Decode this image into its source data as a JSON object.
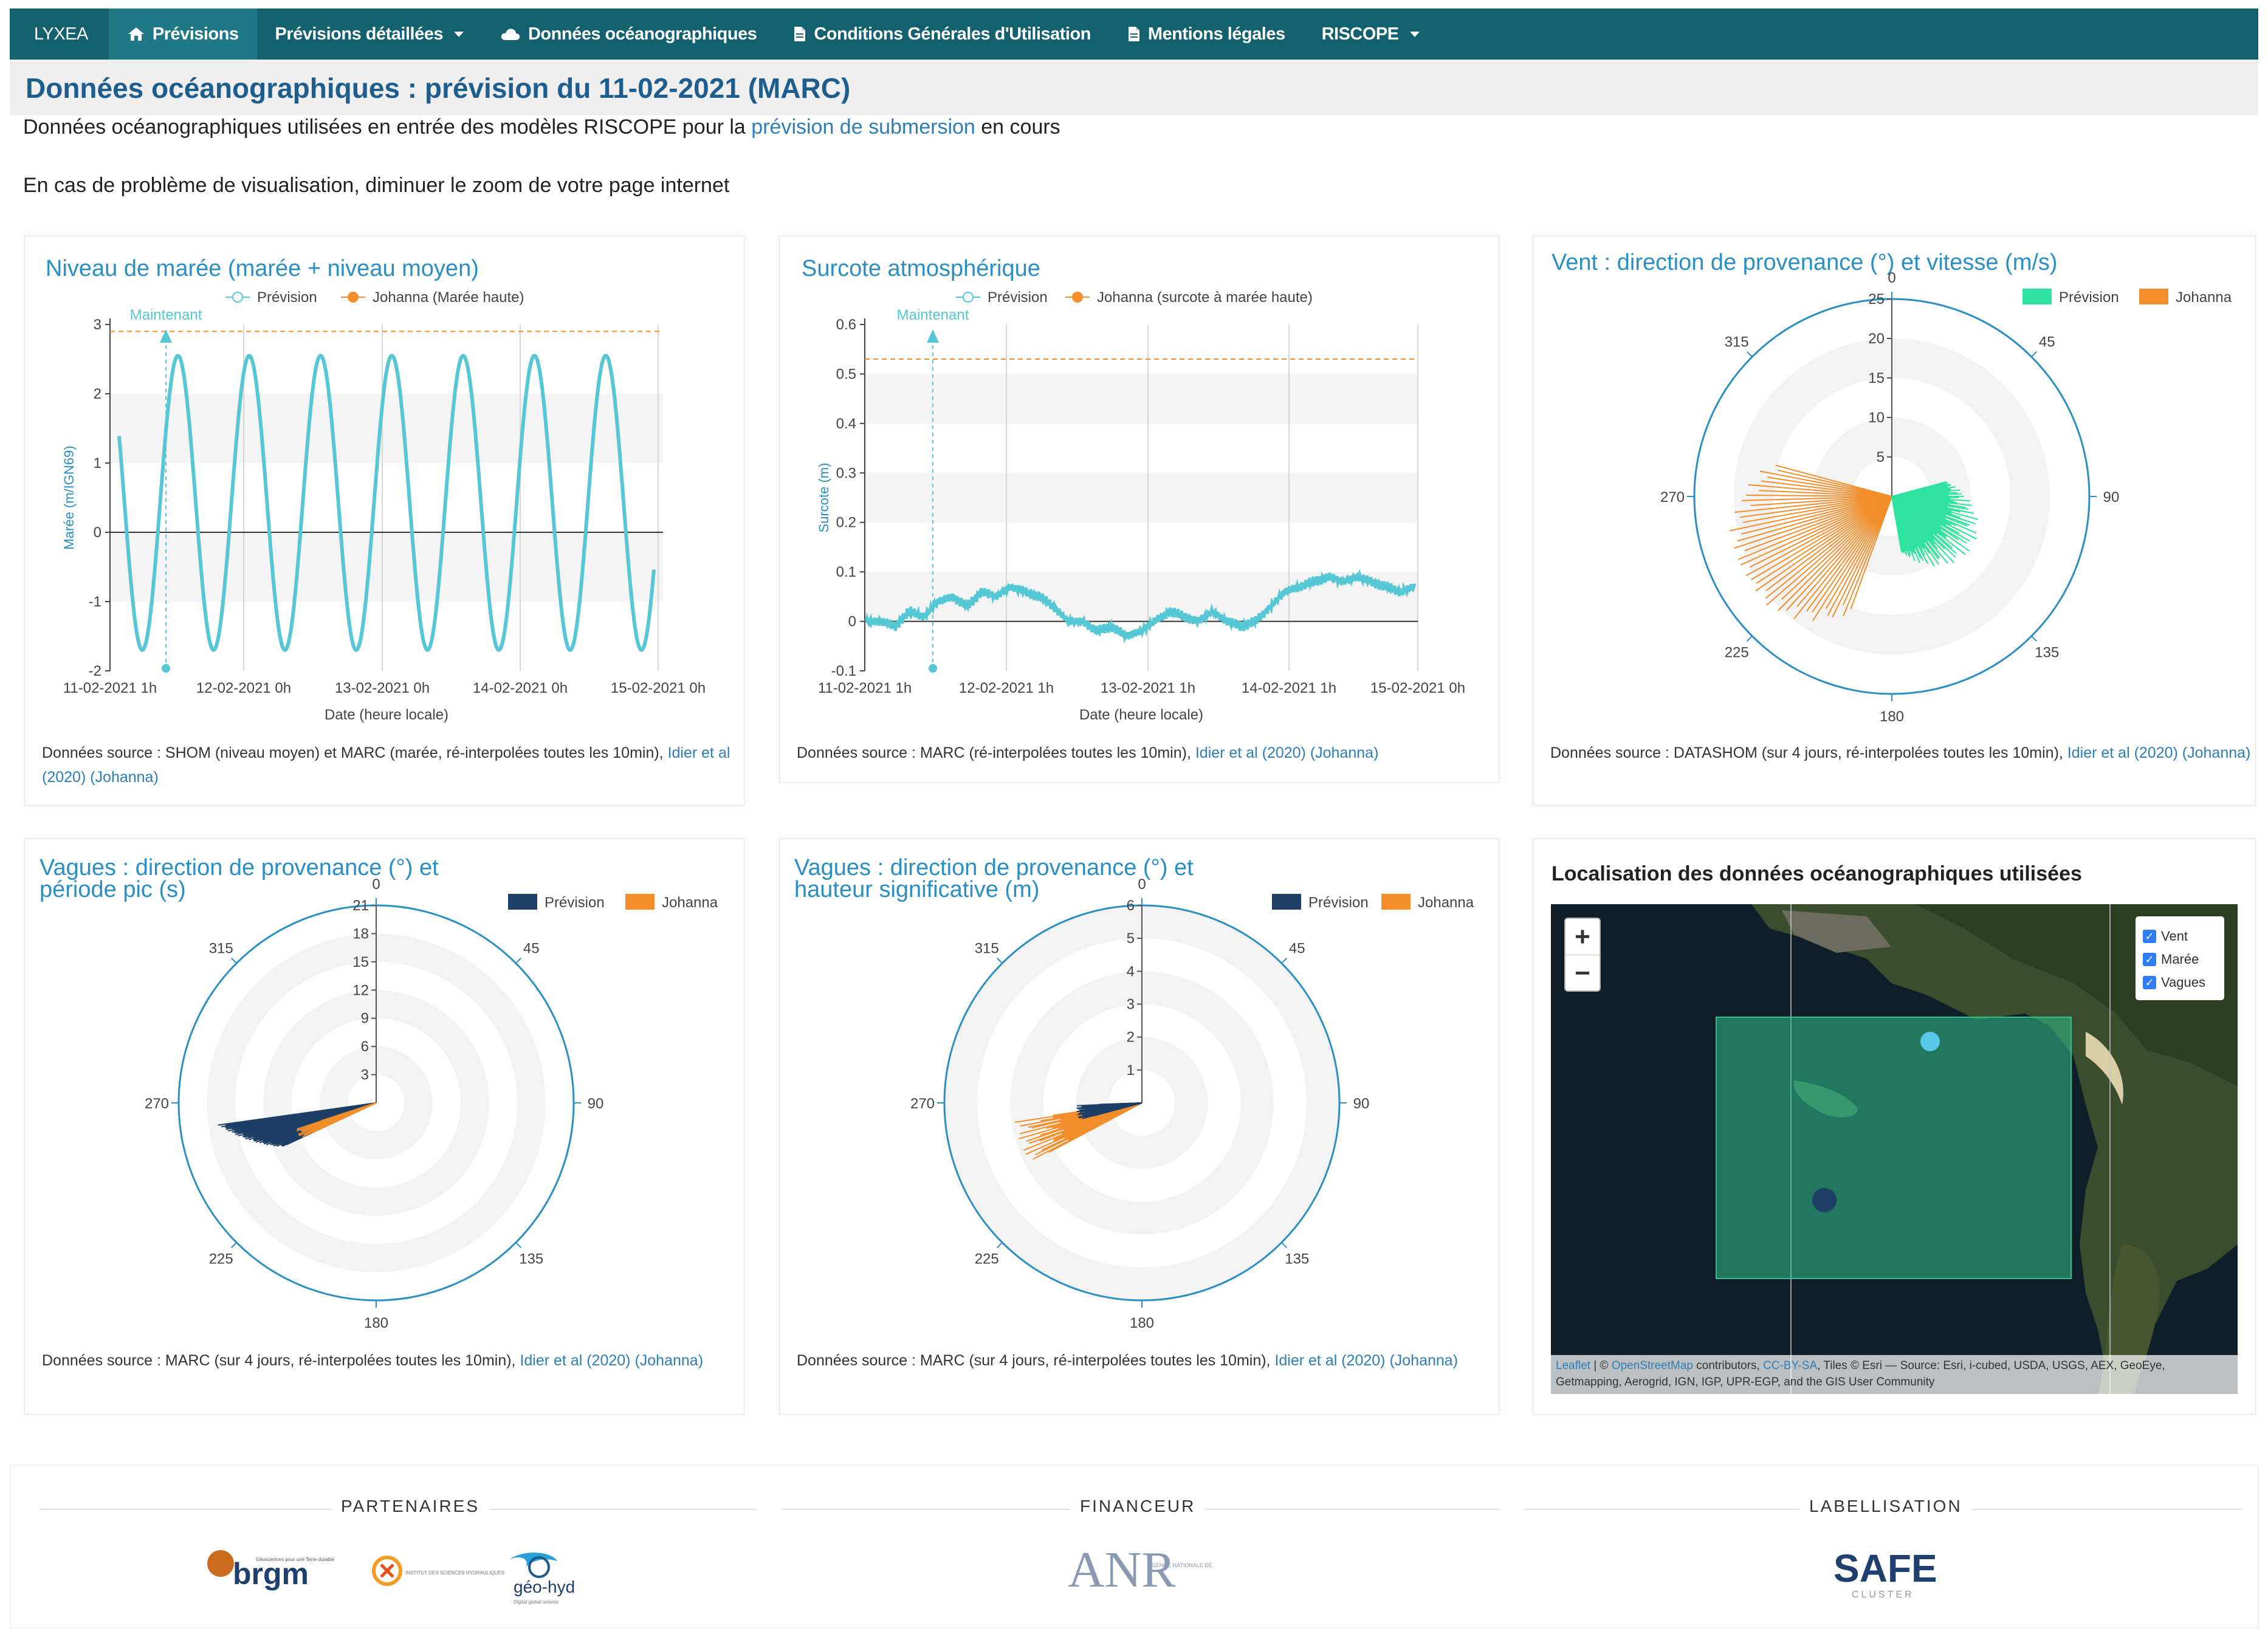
{
  "nav": {
    "brand": "LYXEA",
    "items": [
      {
        "label": "Prévisions",
        "icon": "home-icon"
      },
      {
        "label": "Prévisions détaillées",
        "dropdown": true
      },
      {
        "label": "Données océanographiques",
        "icon": "cloud-icon"
      },
      {
        "label": "Conditions Générales d'Utilisation",
        "icon": "document-icon"
      },
      {
        "label": "Mentions légales",
        "icon": "document-icon"
      },
      {
        "label": "RISCOPE",
        "dropdown": true
      }
    ]
  },
  "page": {
    "title": "Données océanographiques : prévision du 11-02-2021 (MARC)",
    "intro_before": "Données océanographiques utilisées en entrée des modèles RISCOPE pour la ",
    "intro_link": "prévision de submersion",
    "intro_after": " en cours",
    "zoom_note": "En cas de problème de visualisation, diminuer le zoom de votre page internet"
  },
  "colors": {
    "navbar": "#13616f",
    "title": "#1d5e8f",
    "series_cyan": "#56c7d4",
    "johanna_orange": "#f28e2b",
    "wind_green": "#2ee3a0",
    "waves_navy": "#1d3f66",
    "axis_blue": "#2b8fc4"
  },
  "cards": {
    "tide": {
      "title": "Niveau de marée (marée + niveau moyen)",
      "legend_prev": "Prévision",
      "legend_joh": "Johanna (Marée haute)",
      "now_label": "Maintenant",
      "source_text": "Données source : SHOM (niveau moyen) et MARC (marée, ré-interpolées toutes les 10min), ",
      "source_link": "Idier et al (2020) (Johanna)"
    },
    "surge": {
      "title": "Surcote atmosphérique",
      "legend_prev": "Prévision",
      "legend_joh": "Johanna (surcote à marée haute)",
      "now_label": "Maintenant",
      "source_text": "Données source : MARC (ré-interpolées toutes les 10min), ",
      "source_link": "Idier et al (2020) (Johanna)"
    },
    "wind": {
      "title": "Vent : direction de provenance (°) et vitesse (m/s)",
      "legend_prev": "Prévision",
      "legend_joh": "Johanna",
      "source_text": "Données source : DATASHOM (sur 4 jours, ré-interpolées toutes les 10min), ",
      "source_link": "Idier et al (2020) (Johanna)"
    },
    "wave_period": {
      "title_line1": "Vagues : direction de provenance (°) et",
      "title_line2": "période pic (s)",
      "legend_prev": "Prévision",
      "legend_joh": "Johanna",
      "source_text": "Données source : MARC (sur 4 jours, ré-interpolées toutes les 10min), ",
      "source_link": "Idier et al (2020) (Johanna)"
    },
    "wave_height": {
      "title_line1": "Vagues : direction de provenance (°) et",
      "title_line2": "hauteur significative (m)",
      "legend_prev": "Prévision",
      "legend_joh": "Johanna",
      "source_text": "Données source : MARC (sur 4 jours, ré-interpolées toutes les 10min), ",
      "source_link": "Idier et al (2020) (Johanna)"
    },
    "map": {
      "title": "Localisation des données océanographiques utilisées",
      "zoom_in": "+",
      "zoom_out": "−",
      "layers": [
        "Vent",
        "Marée",
        "Vagues"
      ],
      "attrib_leaflet": "Leaflet",
      "attrib_sep1": " | © ",
      "attrib_osm": "OpenStreetMap",
      "attrib_mid": " contributors, ",
      "attrib_cc": "CC-BY-SA",
      "attrib_rest": ", Tiles © Esri — Source: Esri, i-cubed, USDA, USGS, AEX, GeoEye, Getmapping, Aerogrid, IGN, IGP, UPR-EGP, and the GIS User Community"
    }
  },
  "chart_data": [
    {
      "type": "line",
      "title": "Niveau de marée (marée + niveau moyen)",
      "xlabel": "Date (heure locale)",
      "ylabel": "Marée (m/IGN69)",
      "x_ticks": [
        "11-02-2021 1h",
        "12-02-2021 0h",
        "13-02-2021 0h",
        "14-02-2021 0h",
        "15-02-2021 0h"
      ],
      "y_ticks": [
        -2,
        -1,
        0,
        1,
        2,
        3
      ],
      "ylim": [
        -2,
        3
      ],
      "series": [
        {
          "name": "Prévision",
          "pattern": "semi-diurnal tide, 4 days",
          "cycles": 7.5,
          "high": 2.55,
          "low": -1.7
        },
        {
          "name": "Johanna (Marée haute)",
          "constant": 2.9
        }
      ],
      "now_marker": "Maintenant",
      "grid": true
    },
    {
      "type": "line",
      "title": "Surcote atmosphérique",
      "xlabel": "Date (heure locale)",
      "ylabel": "Surcote (m)",
      "x_ticks": [
        "11-02-2021 1h",
        "12-02-2021 1h",
        "13-02-2021 1h",
        "14-02-2021 1h",
        "15-02-2021 0h"
      ],
      "y_ticks": [
        -0.1,
        0,
        0.1,
        0.2,
        0.3,
        0.4,
        0.5,
        0.6
      ],
      "ylim": [
        -0.1,
        0.6
      ],
      "series": [
        {
          "name": "Prévision",
          "values": [
            0.0,
            0.0,
            -0.01,
            0.02,
            0.01,
            0.04,
            0.05,
            0.03,
            0.06,
            0.05,
            0.07,
            0.06,
            0.05,
            0.03,
            0.0,
            0.0,
            -0.02,
            -0.01,
            -0.03,
            -0.02,
            0.0,
            0.02,
            0.01,
            0.0,
            0.02,
            0.0,
            -0.01,
            0.0,
            0.03,
            0.06,
            0.07,
            0.08,
            0.09,
            0.08,
            0.09,
            0.08,
            0.07,
            0.06,
            0.07
          ]
        },
        {
          "name": "Johanna (surcote à marée haute)",
          "constant": 0.53
        }
      ],
      "now_marker": "Maintenant",
      "grid": true
    },
    {
      "type": "polar",
      "title": "Vent : direction de provenance (°) et vitesse (m/s)",
      "angle_ticks": [
        0,
        45,
        90,
        135,
        180,
        225,
        270,
        315
      ],
      "radial_ticks": [
        5,
        10,
        15,
        20,
        25
      ],
      "rmax": 25,
      "series": [
        {
          "name": "Prévision",
          "dir_range": [
            75,
            170
          ],
          "speed_range": [
            4,
            13
          ]
        },
        {
          "name": "Johanna",
          "dir_range": [
            200,
            285
          ],
          "speed_range": [
            8,
            21
          ]
        }
      ]
    },
    {
      "type": "polar",
      "title": "Vagues : direction de provenance (°) et période pic (s)",
      "angle_ticks": [
        0,
        45,
        90,
        135,
        180,
        225,
        270,
        315
      ],
      "radial_ticks": [
        3,
        6,
        9,
        12,
        15,
        18,
        21
      ],
      "rmax": 21,
      "series": [
        {
          "name": "Prévision",
          "dir_range": [
            245,
            262
          ],
          "period_range": [
            10,
            17
          ]
        },
        {
          "name": "Johanna",
          "dir_range": [
            245,
            252
          ],
          "period_range": [
            6,
            9
          ]
        }
      ]
    },
    {
      "type": "polar",
      "title": "Vagues : direction de provenance (°) et hauteur significative (m)",
      "angle_ticks": [
        0,
        45,
        90,
        135,
        180,
        225,
        270,
        315
      ],
      "radial_ticks": [
        1,
        2,
        3,
        4,
        5,
        6
      ],
      "rmax": 6,
      "series": [
        {
          "name": "Prévision",
          "dir_range": [
            255,
            268
          ],
          "height_range": [
            1.0,
            2.0
          ]
        },
        {
          "name": "Johanna",
          "dir_range": [
            242,
            262
          ],
          "height_range": [
            2.5,
            3.9
          ]
        }
      ]
    }
  ],
  "footer": {
    "partners_label": "PARTENAIRES",
    "funder_label": "FINANCEUR",
    "label_label": "LABELLISATION",
    "logos": {
      "brgm": "brgm",
      "brgm_tag": "Géosciences pour une Terre durable",
      "geohyd": "géo-hyd",
      "geohyd_tag": "Digital global seismic",
      "anr": "ANR",
      "anr_tag": "AGENCE NATIONALE DE LA RECHERCHE",
      "safe": "SAFE",
      "safe_tag": "CLUSTER",
      "inst": "INSTITUT DES SCIENCES HYDRAULIQUES"
    }
  }
}
